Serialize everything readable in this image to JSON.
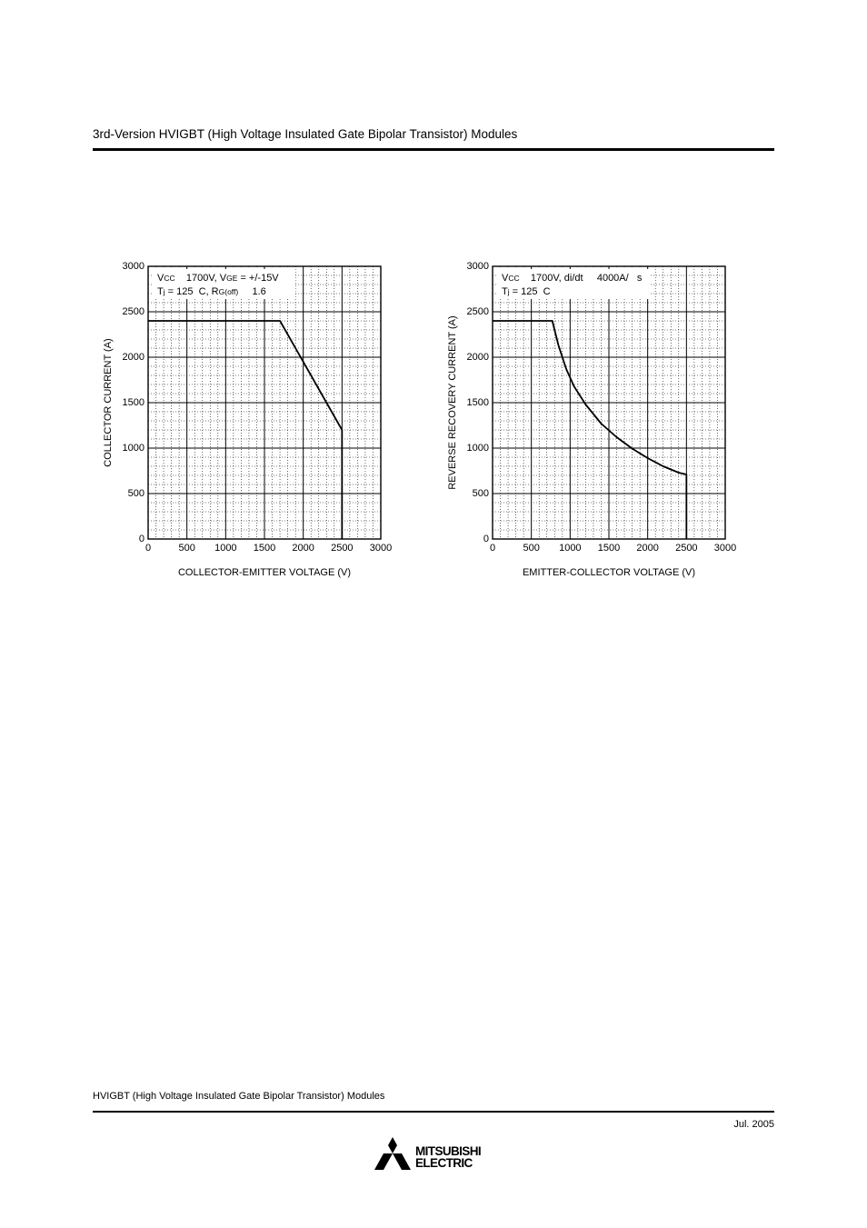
{
  "header": {
    "title": "3rd-Version HVIGBT (High Voltage Insulated Gate Bipolar Transistor) Modules"
  },
  "footer": {
    "title": "HVIGBT (High Voltage Insulated Gate Bipolar Transistor) Modules",
    "date": "Jul.  2005"
  },
  "logo": {
    "line1": "MITSUBISHI",
    "line2": "ELECTRIC"
  },
  "chart_data": [
    {
      "type": "line",
      "xlabel": "COLLECTOR-EMITTER VOLTAGE (V)",
      "ylabel": "COLLECTOR CURRENT (A)",
      "xlim": [
        0,
        3000
      ],
      "ylim": [
        0,
        3000
      ],
      "xticks": [
        "0",
        "500",
        "1000",
        "1500",
        "2000",
        "2500",
        "3000"
      ],
      "yticks": [
        "0",
        "500",
        "1000",
        "1500",
        "2000",
        "2500",
        "3000"
      ],
      "grid": true,
      "annotation": [
        {
          "parts": [
            "V",
            "CC",
            "    1700V, V",
            "GE",
            " = +/-15V"
          ]
        },
        {
          "parts": [
            "T",
            "j",
            " = 125  C, R",
            "G(off)",
            "     1.6"
          ]
        }
      ],
      "series": [
        {
          "x": [
            0,
            1700,
            2500,
            2500
          ],
          "y": [
            2400,
            2400,
            1200,
            0
          ]
        }
      ]
    },
    {
      "type": "line",
      "xlabel": "EMITTER-COLLECTOR VOLTAGE (V)",
      "ylabel": "REVERSE RECOVERY CURRENT (A)",
      "xlim": [
        0,
        3000
      ],
      "ylim": [
        0,
        3000
      ],
      "xticks": [
        "0",
        "500",
        "1000",
        "1500",
        "2000",
        "2500",
        "3000"
      ],
      "yticks": [
        "0",
        "500",
        "1000",
        "1500",
        "2000",
        "2500",
        "3000"
      ],
      "grid": true,
      "annotation": [
        {
          "parts": [
            "V",
            "CC",
            "    1700V, di/dt     4000A/   s"
          ]
        },
        {
          "parts": [
            "T",
            "j",
            " = 125  C"
          ]
        }
      ],
      "series": [
        {
          "x": [
            0,
            770,
            850,
            950,
            1050,
            1200,
            1400,
            1600,
            1800,
            2000,
            2200,
            2400,
            2500,
            2500
          ],
          "y": [
            2400,
            2400,
            2130,
            1870,
            1680,
            1480,
            1270,
            1120,
            995,
            890,
            800,
            730,
            710,
            0
          ]
        }
      ]
    }
  ]
}
